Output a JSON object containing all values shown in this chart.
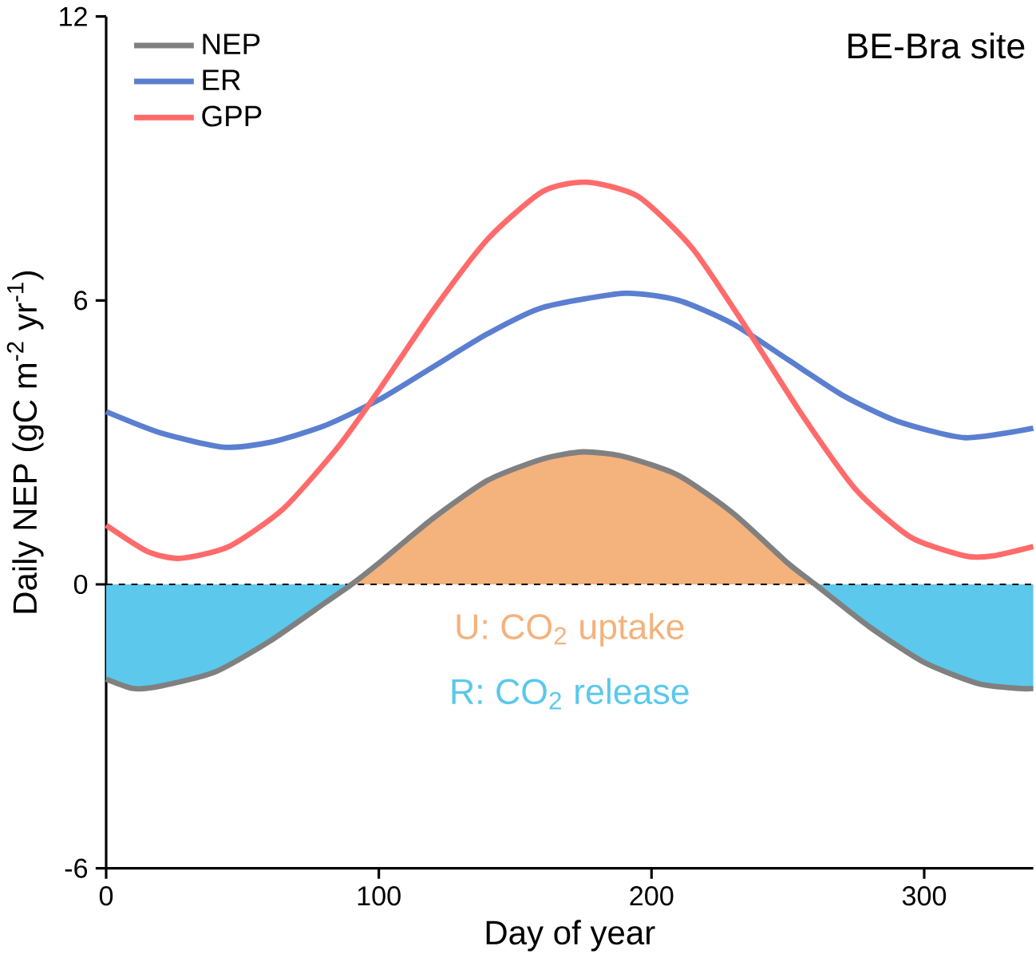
{
  "chart_data": {
    "type": "line",
    "title": "BE-Bra site",
    "xlabel": "Day of year",
    "ylabel": "Daily NEP (gC m$^{-2}$ yr$^{-1}$)",
    "xlim": [
      0,
      340
    ],
    "ylim": [
      -6,
      12
    ],
    "xticks": [
      0,
      100,
      200,
      300
    ],
    "yticks": [
      -6,
      0,
      6,
      12
    ],
    "legend": "top left",
    "line_style": "solid",
    "series": [
      {
        "type": "area",
        "color": "#f4b27d",
        "x": [
          90,
          100,
          120,
          140,
          160,
          175,
          190,
          210,
          230,
          250,
          260
        ],
        "values": [
          0,
          0.45,
          1.4,
          2.2,
          2.65,
          2.8,
          2.7,
          2.3,
          1.5,
          0.45,
          0
        ]
      },
      {
        "type": "area",
        "color": "#5bc8ec",
        "x": [
          0,
          10,
          20,
          40,
          60,
          80,
          90,
          175,
          260,
          280,
          300,
          320,
          335,
          340
        ],
        "values": [
          -2.0,
          -2.2,
          -2.15,
          -1.85,
          -1.2,
          -0.4,
          0,
          null,
          0,
          -0.9,
          -1.65,
          -2.1,
          -2.2,
          -2.2
        ]
      },
      {
        "name": "NEP",
        "color": "#808080",
        "x": [
          0,
          10,
          20,
          40,
          60,
          80,
          90,
          100,
          120,
          140,
          160,
          175,
          190,
          210,
          230,
          250,
          260,
          280,
          300,
          320,
          335,
          340
        ],
        "values": [
          -2.0,
          -2.2,
          -2.15,
          -1.85,
          -1.2,
          -0.4,
          0,
          0.45,
          1.4,
          2.2,
          2.65,
          2.8,
          2.7,
          2.3,
          1.5,
          0.45,
          0,
          -0.9,
          -1.65,
          -2.1,
          -2.2,
          -2.2
        ]
      },
      {
        "name": "ER",
        "color": "#5b7fd0",
        "x": [
          0,
          20,
          43,
          60,
          80,
          100,
          120,
          140,
          160,
          190,
          210,
          230,
          250,
          270,
          290,
          315,
          340
        ],
        "values": [
          3.65,
          3.2,
          2.9,
          3.0,
          3.35,
          3.9,
          4.6,
          5.3,
          5.85,
          6.15,
          6.0,
          5.5,
          4.75,
          4.0,
          3.45,
          3.1,
          3.3
        ]
      },
      {
        "name": "GPP",
        "color": "#ff6b6b",
        "x": [
          0,
          15,
          27,
          45,
          65,
          85,
          100,
          120,
          140,
          160,
          176,
          195,
          215,
          235,
          255,
          275,
          295,
          315,
          325,
          340
        ],
        "values": [
          1.25,
          0.7,
          0.55,
          0.8,
          1.6,
          2.9,
          4.1,
          5.8,
          7.3,
          8.3,
          8.5,
          8.2,
          7.1,
          5.4,
          3.6,
          2.0,
          1.0,
          0.6,
          0.6,
          0.8
        ]
      }
    ],
    "ref_lines": [
      {
        "axis": "y",
        "value": 0,
        "color": "#000000",
        "line_style": "dashed"
      }
    ],
    "annotations": [
      "U: CO$_{2}$ uptake",
      "R: CO$_{2}$ release"
    ]
  }
}
